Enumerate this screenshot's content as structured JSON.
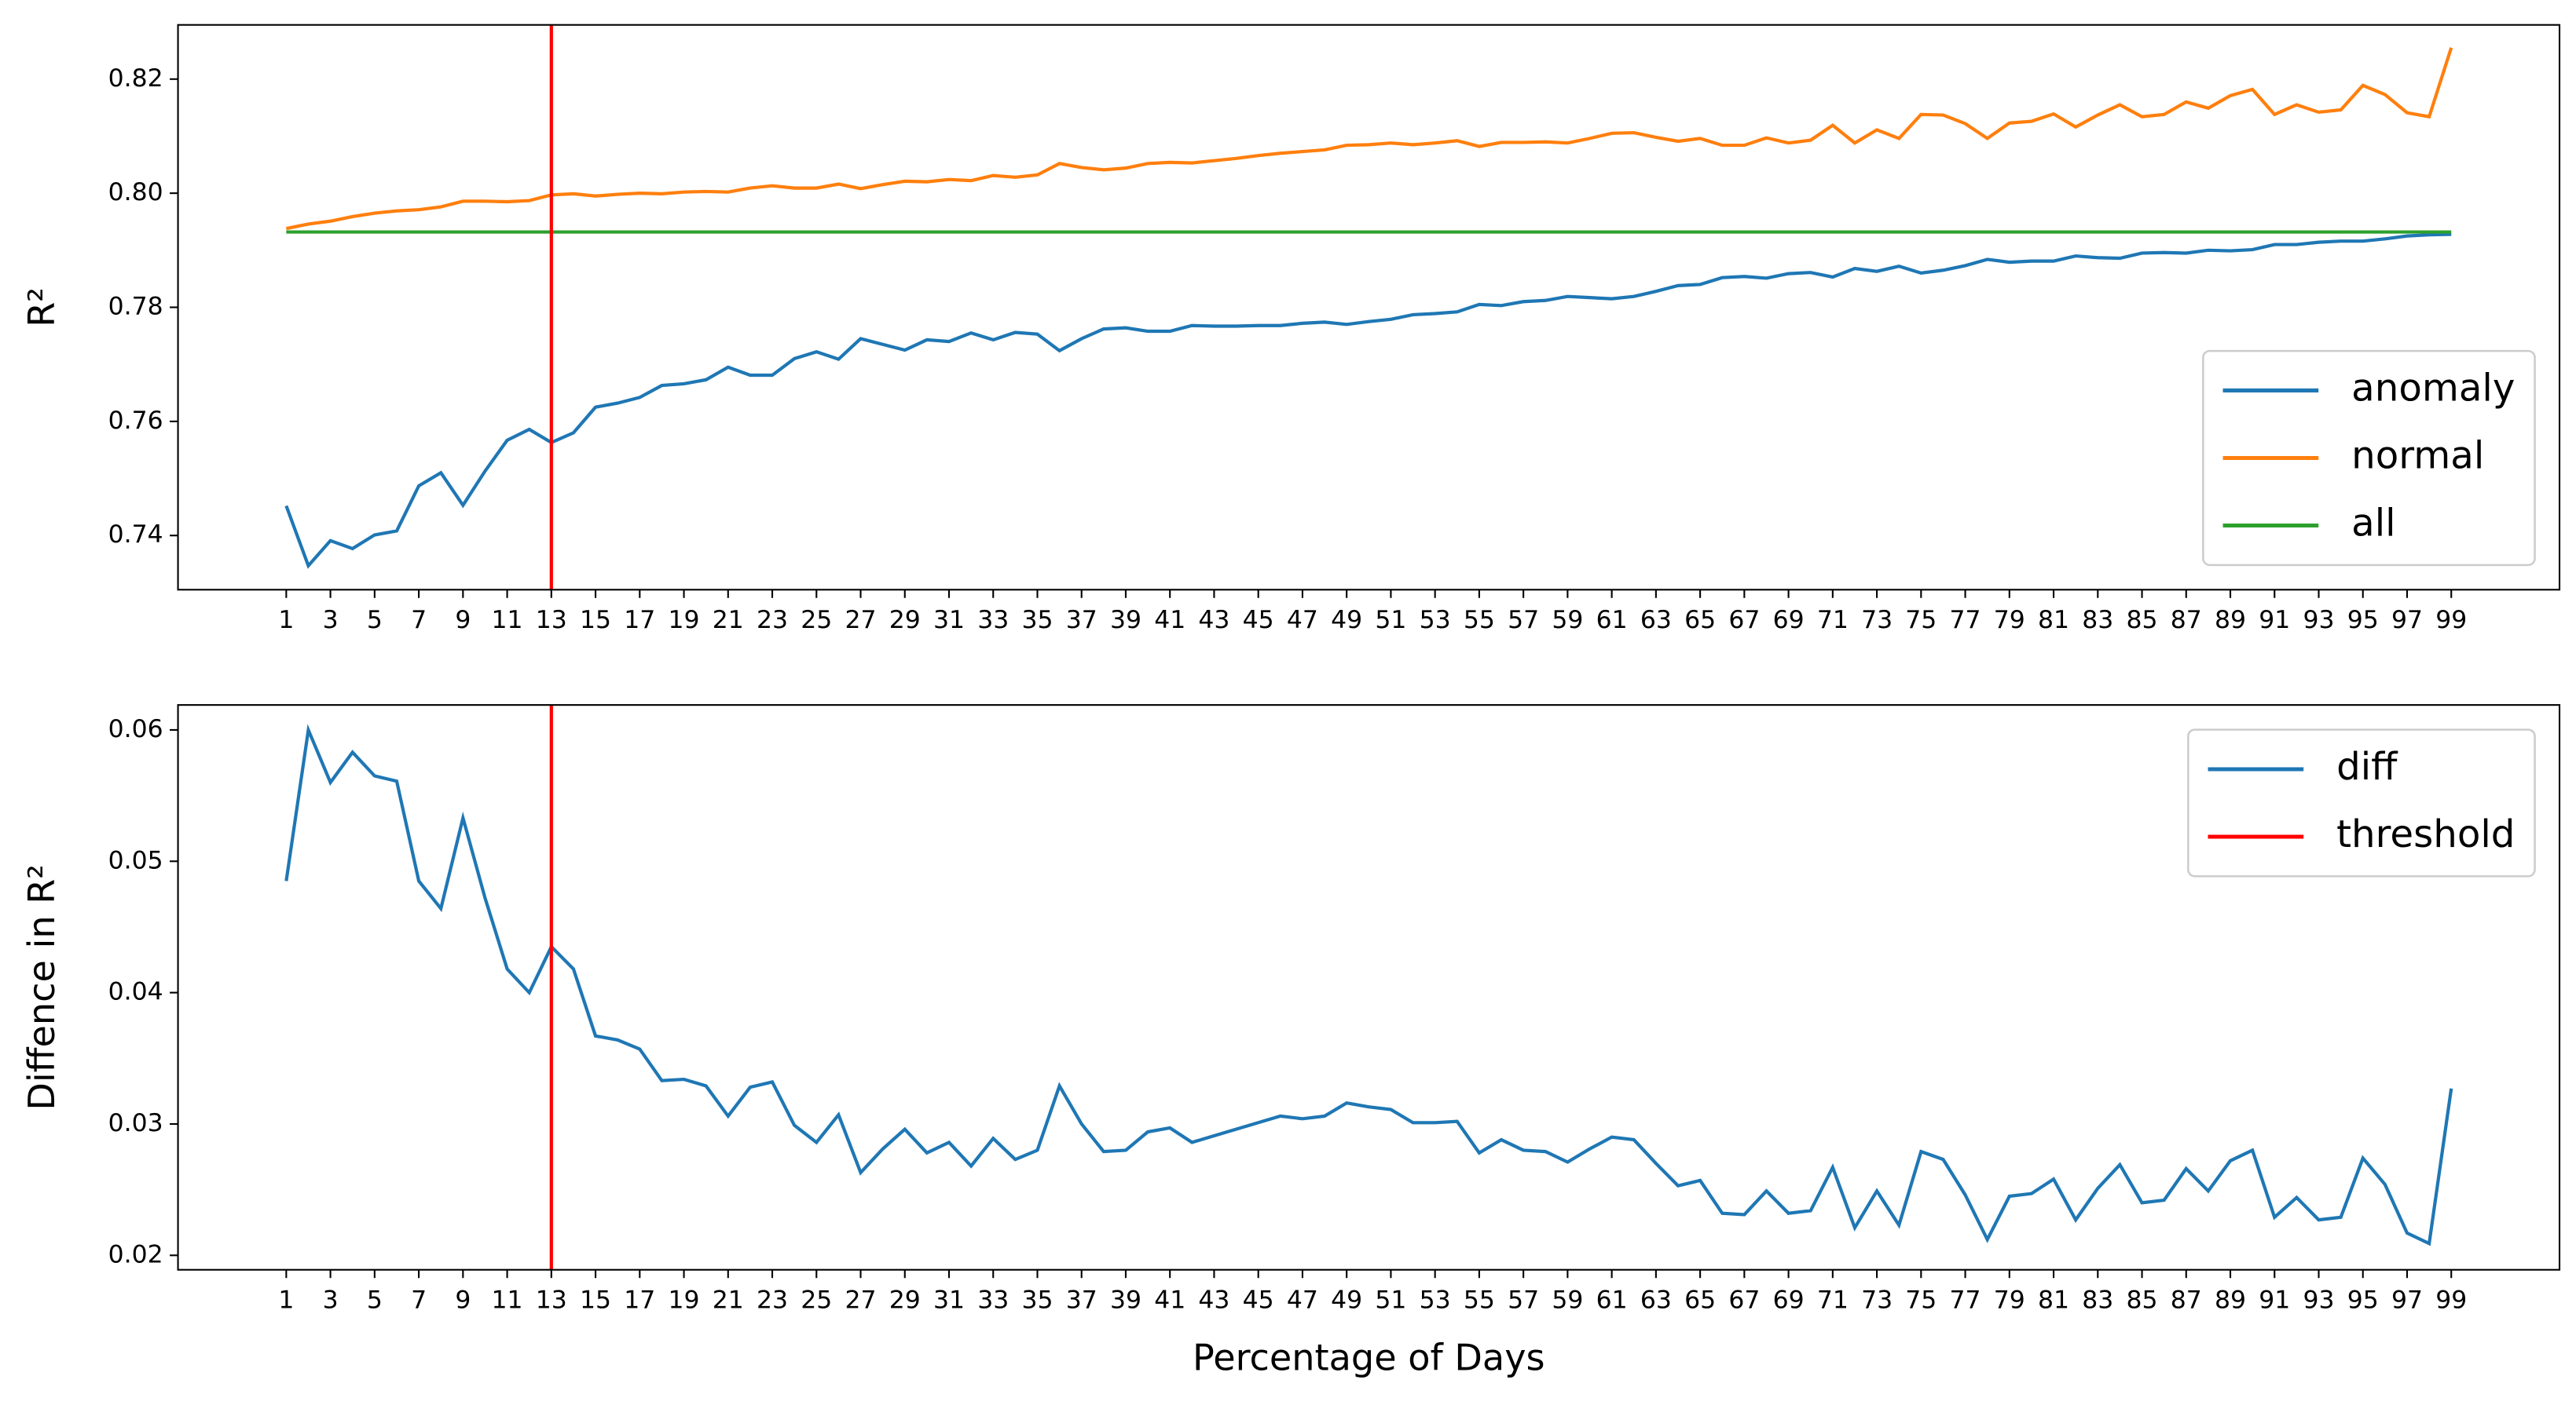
{
  "chart_data": [
    {
      "type": "line",
      "ylabel": "R²",
      "legend": "lower right",
      "grid": false,
      "x": [
        1,
        2,
        3,
        4,
        5,
        6,
        7,
        8,
        9,
        10,
        11,
        12,
        13,
        14,
        15,
        16,
        17,
        18,
        19,
        20,
        21,
        22,
        23,
        24,
        25,
        26,
        27,
        28,
        29,
        30,
        31,
        32,
        33,
        34,
        35,
        36,
        37,
        38,
        39,
        40,
        41,
        42,
        43,
        44,
        45,
        46,
        47,
        48,
        49,
        50,
        51,
        52,
        53,
        54,
        55,
        56,
        57,
        58,
        59,
        60,
        61,
        62,
        63,
        64,
        65,
        66,
        67,
        68,
        69,
        70,
        71,
        72,
        73,
        74,
        75,
        76,
        77,
        78,
        79,
        80,
        81,
        82,
        83,
        84,
        85,
        86,
        87,
        88,
        89,
        90,
        91,
        92,
        93,
        94,
        95,
        96,
        97,
        98,
        99
      ],
      "xlim": [
        -3.9,
        103.9
      ],
      "xticks": [
        1,
        3,
        5,
        7,
        9,
        11,
        13,
        15,
        17,
        19,
        21,
        23,
        25,
        27,
        29,
        31,
        33,
        35,
        37,
        39,
        41,
        43,
        45,
        47,
        49,
        51,
        53,
        55,
        57,
        59,
        61,
        63,
        65,
        67,
        69,
        71,
        73,
        75,
        77,
        79,
        81,
        83,
        85,
        87,
        89,
        91,
        93,
        95,
        97,
        99
      ],
      "ylim": [
        0.7305,
        0.8295
      ],
      "yticks": [
        0.74,
        0.76,
        0.78,
        {
          "value": 0.8,
          "label": "0.80"
        },
        0.82
      ],
      "vline": {
        "x": 13,
        "color": "#ff0000"
      },
      "series": [
        {
          "name": "anomaly",
          "color": "#1f77b4",
          "values": [
            0.7452,
            0.7347,
            0.7391,
            0.7377,
            0.7401,
            0.7408,
            0.7487,
            0.751,
            0.7453,
            0.7513,
            0.7567,
            0.7586,
            0.7563,
            0.758,
            0.7625,
            0.7632,
            0.7642,
            0.7663,
            0.7666,
            0.7673,
            0.7695,
            0.7681,
            0.7681,
            0.771,
            0.7722,
            0.7709,
            0.7745,
            0.7735,
            0.7725,
            0.7743,
            0.774,
            0.7755,
            0.7743,
            0.7756,
            0.7753,
            0.7724,
            0.7745,
            0.7762,
            0.7764,
            0.7758,
            0.7758,
            0.7768,
            0.7767,
            0.7767,
            0.7768,
            0.7768,
            0.7772,
            0.7774,
            0.777,
            0.7775,
            0.7779,
            0.7787,
            0.7789,
            0.7792,
            0.7805,
            0.7803,
            0.781,
            0.7812,
            0.7819,
            0.7817,
            0.7815,
            0.7819,
            0.7828,
            0.7838,
            0.784,
            0.7852,
            0.7854,
            0.7851,
            0.7859,
            0.7861,
            0.7853,
            0.7868,
            0.7863,
            0.7872,
            0.786,
            0.7865,
            0.7873,
            0.7884,
            0.7879,
            0.7881,
            0.7881,
            0.789,
            0.7887,
            0.7886,
            0.7895,
            0.7896,
            0.7895,
            0.79,
            0.7899,
            0.7901,
            0.791,
            0.791,
            0.7914,
            0.7916,
            0.7916,
            0.792,
            0.7925,
            0.7927,
            0.7928
          ]
        },
        {
          "name": "normal",
          "color": "#ff7f0e",
          "values": [
            0.7938,
            0.7946,
            0.7951,
            0.7959,
            0.7965,
            0.7969,
            0.7971,
            0.7976,
            0.7986,
            0.7986,
            0.7985,
            0.7987,
            0.7997,
            0.7999,
            0.7995,
            0.7998,
            0.8,
            0.7999,
            0.8002,
            0.8003,
            0.8002,
            0.8009,
            0.8013,
            0.8009,
            0.8009,
            0.8016,
            0.8008,
            0.8015,
            0.8021,
            0.802,
            0.8024,
            0.8022,
            0.8031,
            0.8028,
            0.8032,
            0.8052,
            0.8045,
            0.8041,
            0.8044,
            0.8052,
            0.8054,
            0.8053,
            0.8057,
            0.8061,
            0.8066,
            0.807,
            0.8073,
            0.8076,
            0.8084,
            0.8085,
            0.8088,
            0.8085,
            0.8088,
            0.8092,
            0.8082,
            0.8089,
            0.8089,
            0.809,
            0.8088,
            0.8096,
            0.8105,
            0.8106,
            0.8098,
            0.8091,
            0.8096,
            0.8084,
            0.8084,
            0.8097,
            0.8088,
            0.8093,
            0.8119,
            0.8088,
            0.8111,
            0.8096,
            0.8138,
            0.8137,
            0.8122,
            0.8096,
            0.8123,
            0.8126,
            0.8139,
            0.8116,
            0.8137,
            0.8155,
            0.8134,
            0.8138,
            0.816,
            0.8149,
            0.8171,
            0.8182,
            0.8138,
            0.8155,
            0.8142,
            0.8146,
            0.8189,
            0.8173,
            0.8141,
            0.8134,
            0.8255
          ]
        },
        {
          "name": "all",
          "color": "#2ca02c",
          "values": [
            0.7932,
            0.7932,
            0.7932,
            0.7932,
            0.7932,
            0.7932,
            0.7932,
            0.7932,
            0.7932,
            0.7932,
            0.7932,
            0.7932,
            0.7932,
            0.7932,
            0.7932,
            0.7932,
            0.7932,
            0.7932,
            0.7932,
            0.7932,
            0.7932,
            0.7932,
            0.7932,
            0.7932,
            0.7932,
            0.7932,
            0.7932,
            0.7932,
            0.7932,
            0.7932,
            0.7932,
            0.7932,
            0.7932,
            0.7932,
            0.7932,
            0.7932,
            0.7932,
            0.7932,
            0.7932,
            0.7932,
            0.7932,
            0.7932,
            0.7932,
            0.7932,
            0.7932,
            0.7932,
            0.7932,
            0.7932,
            0.7932,
            0.7932,
            0.7932,
            0.7932,
            0.7932,
            0.7932,
            0.7932,
            0.7932,
            0.7932,
            0.7932,
            0.7932,
            0.7932,
            0.7932,
            0.7932,
            0.7932,
            0.7932,
            0.7932,
            0.7932,
            0.7932,
            0.7932,
            0.7932,
            0.7932,
            0.7932,
            0.7932,
            0.7932,
            0.7932,
            0.7932,
            0.7932,
            0.7932,
            0.7932,
            0.7932,
            0.7932,
            0.7932,
            0.7932,
            0.7932,
            0.7932,
            0.7932,
            0.7932,
            0.7932,
            0.7932,
            0.7932,
            0.7932,
            0.7932,
            0.7932,
            0.7932,
            0.7932,
            0.7932,
            0.7932,
            0.7932,
            0.7932,
            0.7932
          ]
        }
      ]
    },
    {
      "type": "line",
      "ylabel": "Diffence in R²",
      "xlabel": "Percentage of Days",
      "legend": "upper right",
      "grid": false,
      "x": [
        1,
        2,
        3,
        4,
        5,
        6,
        7,
        8,
        9,
        10,
        11,
        12,
        13,
        14,
        15,
        16,
        17,
        18,
        19,
        20,
        21,
        22,
        23,
        24,
        25,
        26,
        27,
        28,
        29,
        30,
        31,
        32,
        33,
        34,
        35,
        36,
        37,
        38,
        39,
        40,
        41,
        42,
        43,
        44,
        45,
        46,
        47,
        48,
        49,
        50,
        51,
        52,
        53,
        54,
        55,
        56,
        57,
        58,
        59,
        60,
        61,
        62,
        63,
        64,
        65,
        66,
        67,
        68,
        69,
        70,
        71,
        72,
        73,
        74,
        75,
        76,
        77,
        78,
        79,
        80,
        81,
        82,
        83,
        84,
        85,
        86,
        87,
        88,
        89,
        90,
        91,
        92,
        93,
        94,
        95,
        96,
        97,
        98,
        99
      ],
      "xlim": [
        -3.9,
        103.9
      ],
      "xticks": [
        1,
        3,
        5,
        7,
        9,
        11,
        13,
        15,
        17,
        19,
        21,
        23,
        25,
        27,
        29,
        31,
        33,
        35,
        37,
        39,
        41,
        43,
        45,
        47,
        49,
        51,
        53,
        55,
        57,
        59,
        61,
        63,
        65,
        67,
        69,
        71,
        73,
        75,
        77,
        79,
        81,
        83,
        85,
        87,
        89,
        91,
        93,
        95,
        97,
        99
      ],
      "ylim": [
        0.0189,
        0.0619
      ],
      "yticks": [
        0.02,
        0.03,
        0.04,
        0.05,
        0.06
      ],
      "vline": {
        "name": "threshold",
        "x": 13,
        "color": "#ff0000"
      },
      "series": [
        {
          "name": "diff",
          "color": "#1f77b4",
          "values": [
            0.0485,
            0.06,
            0.056,
            0.0583,
            0.0565,
            0.0561,
            0.0485,
            0.0464,
            0.0533,
            0.0472,
            0.0418,
            0.04,
            0.0435,
            0.0418,
            0.0367,
            0.0364,
            0.0357,
            0.0333,
            0.0334,
            0.0329,
            0.0306,
            0.0328,
            0.0332,
            0.0299,
            0.0286,
            0.0307,
            0.0263,
            0.0281,
            0.0296,
            0.0278,
            0.0286,
            0.0268,
            0.0289,
            0.0273,
            0.028,
            0.0329,
            0.03,
            0.0279,
            0.028,
            0.0294,
            0.0297,
            0.0286,
            0.0291,
            0.0296,
            0.0301,
            0.0306,
            0.0304,
            0.0306,
            0.0316,
            0.0313,
            0.0311,
            0.0301,
            0.0301,
            0.0302,
            0.0278,
            0.0288,
            0.028,
            0.0279,
            0.0271,
            0.0281,
            0.029,
            0.0288,
            0.027,
            0.0253,
            0.0257,
            0.0232,
            0.0231,
            0.0249,
            0.0232,
            0.0234,
            0.0267,
            0.0221,
            0.0249,
            0.0223,
            0.0279,
            0.0273,
            0.0246,
            0.0212,
            0.0245,
            0.0247,
            0.0258,
            0.0227,
            0.0251,
            0.0269,
            0.024,
            0.0242,
            0.0266,
            0.0249,
            0.0272,
            0.028,
            0.0229,
            0.0244,
            0.0227,
            0.0229,
            0.0274,
            0.0254,
            0.0217,
            0.0209,
            0.0327
          ]
        }
      ]
    }
  ]
}
